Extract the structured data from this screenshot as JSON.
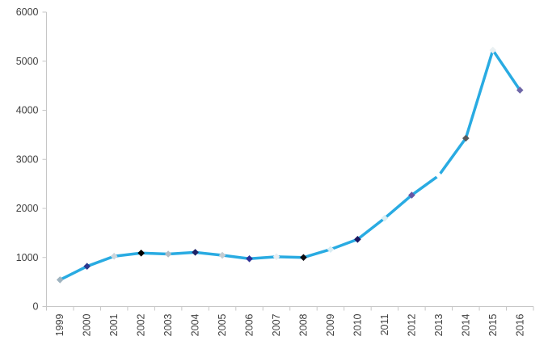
{
  "chart_data": {
    "type": "line",
    "categories": [
      "1999",
      "2000",
      "2001",
      "2002",
      "2003",
      "2004",
      "2005",
      "2006",
      "2007",
      "2008",
      "2009",
      "2010",
      "2011",
      "2012",
      "2013",
      "2014",
      "2015",
      "2016"
    ],
    "values": [
      545,
      820,
      1025,
      1090,
      1070,
      1105,
      1045,
      975,
      1015,
      1000,
      1165,
      1370,
      1800,
      2270,
      2670,
      3430,
      5225,
      4410
    ],
    "ylim": [
      0,
      6000
    ],
    "yticks": [
      0,
      1000,
      2000,
      3000,
      4000,
      5000,
      6000
    ],
    "grid": false,
    "legend": false,
    "line_color": "#29abe2",
    "axis_color": "#c6c6c6",
    "label_color": "#3f3f3f",
    "marker_shape": "diamond",
    "marker_colors": [
      "#9fb3bf",
      "#2b3990",
      "#ccd6dc",
      "#000000",
      "#b3bcc4",
      "#1f2366",
      "#c3ccd2",
      "#2f3095",
      "#e8eef2",
      "#0c0c12",
      "#d8ecf3",
      "#1c1660",
      "#d9eef3",
      "#6456a5",
      "#ffffff",
      "#58595b",
      "#e9f0f2",
      "#6f68a8"
    ]
  }
}
